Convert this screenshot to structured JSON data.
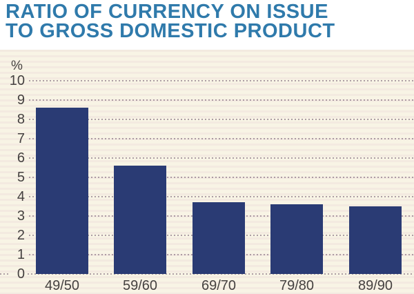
{
  "title": {
    "line1": "RATIO OF CURRENCY ON ISSUE",
    "line2": "TO GROSS DOMESTIC PRODUCT"
  },
  "chart_data": {
    "type": "bar",
    "title": "RATIO OF CURRENCY ON ISSUE TO GROSS DOMESTIC PRODUCT",
    "unit_label": "%",
    "categories": [
      "49/50",
      "59/60",
      "69/70",
      "79/80",
      "89/90"
    ],
    "values": [
      8.6,
      5.6,
      3.7,
      3.6,
      3.5
    ],
    "xlabel": "",
    "ylabel": "%",
    "ylim": [
      0,
      10
    ],
    "yticks": [
      0,
      1,
      2,
      3,
      4,
      5,
      6,
      7,
      8,
      9,
      10
    ],
    "grid": "horizontal-dotted",
    "legend": "none"
  },
  "colors": {
    "title_text": "#2f7aab",
    "bar_fill": "#2a3b74",
    "panel_background": "#f8f4e5",
    "axis_text": "#454140",
    "grid_dots": "#94808f",
    "page_background": "#ffffff"
  }
}
